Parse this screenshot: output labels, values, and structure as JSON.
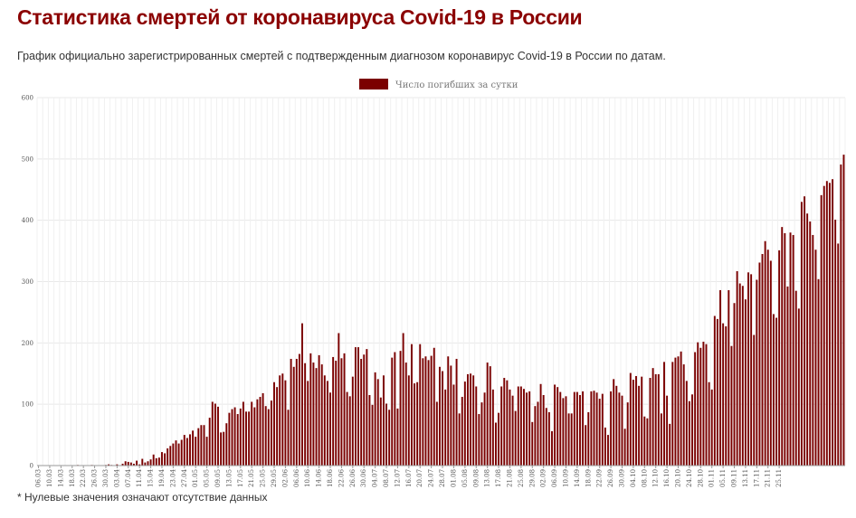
{
  "header": {
    "title": "Статистика смертей от коронавируса Covid-19 в России",
    "subtitle": "График официально зарегистрированных смертей с подтвержденным диагнозом коронавирус Covid-19 в России по датам."
  },
  "footnote": "* Нулевые значения означают отсутствие данных",
  "colors": {
    "bar": "#7b0000",
    "title": "#8b0000",
    "grid": "#e8e8e8"
  },
  "chart_data": {
    "type": "bar",
    "legend": {
      "label": "Число погибших за сутки",
      "position": "top-center"
    },
    "ylim": [
      0,
      600
    ],
    "yticks": [
      "0",
      "100",
      "200",
      "300",
      "400",
      "500",
      "600"
    ],
    "grid": true,
    "x_start": "06.03",
    "x_end": "25.11",
    "xtick_labels": [
      "06.03",
      "10.03",
      "14.03",
      "18.03",
      "22.03",
      "26.03",
      "30.03",
      "03.04",
      "07.04",
      "11.04",
      "15.04",
      "19.04",
      "23.04",
      "27.04",
      "01.05",
      "05.05",
      "09.05",
      "13.05",
      "17.05",
      "21.05",
      "25.05",
      "29.05",
      "02.06",
      "06.06",
      "10.06",
      "14.06",
      "18.06",
      "22.06",
      "26.06",
      "30.06",
      "04.07",
      "08.07",
      "12.07",
      "16.07",
      "20.07",
      "24.07",
      "28.07",
      "01.08",
      "05.08",
      "09.08",
      "13.08",
      "17.08",
      "21.08",
      "25.08",
      "29.08",
      "02.09",
      "06.09",
      "10.09",
      "14.09",
      "18.09",
      "22.09",
      "26.09",
      "30.09",
      "04.10",
      "08.10",
      "12.10",
      "16.10",
      "20.10",
      "24.10",
      "28.10",
      "01.11",
      "05.11",
      "09.11",
      "13.11",
      "17.11",
      "21.11",
      "25.11"
    ],
    "series": [
      {
        "name": "Число погибших за сутки",
        "values": [
          0,
          0,
          0,
          0,
          0,
          0,
          0,
          0,
          0,
          0,
          0,
          0,
          0,
          0,
          1,
          0,
          0,
          0,
          0,
          1,
          0,
          0,
          0,
          0,
          1,
          2,
          1,
          0,
          2,
          0,
          3,
          7,
          6,
          5,
          3,
          8,
          2,
          11,
          5,
          7,
          10,
          18,
          12,
          13,
          22,
          20,
          28,
          32,
          36,
          41,
          36,
          42,
          50,
          45,
          51,
          57,
          47,
          61,
          66,
          66,
          47,
          78,
          104,
          101,
          96,
          54,
          55,
          69,
          86,
          92,
          95,
          84,
          93,
          104,
          88,
          88,
          104,
          95,
          108,
          112,
          118,
          97,
          92,
          106,
          136,
          128,
          147,
          150,
          139,
          91,
          174,
          161,
          174,
          182,
          232,
          167,
          138,
          183,
          168,
          159,
          180,
          165,
          147,
          138,
          119,
          177,
          171,
          216,
          175,
          183,
          120,
          113,
          145,
          193,
          193,
          174,
          181,
          190,
          115,
          99,
          152,
          141,
          111,
          147,
          101,
          91,
          176,
          185,
          93,
          187,
          216,
          168,
          147,
          198,
          134,
          136,
          198,
          175,
          178,
          172,
          179,
          192,
          104,
          161,
          154,
          124,
          178,
          163,
          132,
          174,
          85,
          112,
          137,
          149,
          150,
          147,
          129,
          84,
          103,
          119,
          168,
          162,
          124,
          70,
          86,
          129,
          143,
          139,
          124,
          114,
          89,
          129,
          129,
          125,
          119,
          121,
          71,
          97,
          104,
          133,
          115,
          94,
          87,
          56,
          132,
          128,
          120,
          110,
          113,
          85,
          85,
          120,
          120,
          115,
          121,
          66,
          87,
          121,
          122,
          119,
          109,
          117,
          62,
          50,
          121,
          141,
          130,
          119,
          114,
          60,
          103,
          151,
          140,
          146,
          130,
          145,
          80,
          77,
          143,
          159,
          149,
          149,
          85,
          169,
          114,
          68,
          169,
          176,
          178,
          186,
          165,
          138,
          105,
          116,
          185,
          201,
          192,
          202,
          198,
          136,
          124,
          244,
          239,
          286,
          232,
          227,
          286,
          195,
          265,
          317,
          297,
          293,
          271,
          315,
          312,
          213,
          303,
          331,
          345,
          366,
          352,
          334,
          247,
          241,
          351,
          389,
          379,
          292,
          380,
          376,
          285,
          256,
          430,
          439,
          411,
          398,
          376,
          352,
          304,
          441,
          456,
          464,
          461,
          467,
          401,
          362,
          491,
          507
        ]
      }
    ]
  }
}
